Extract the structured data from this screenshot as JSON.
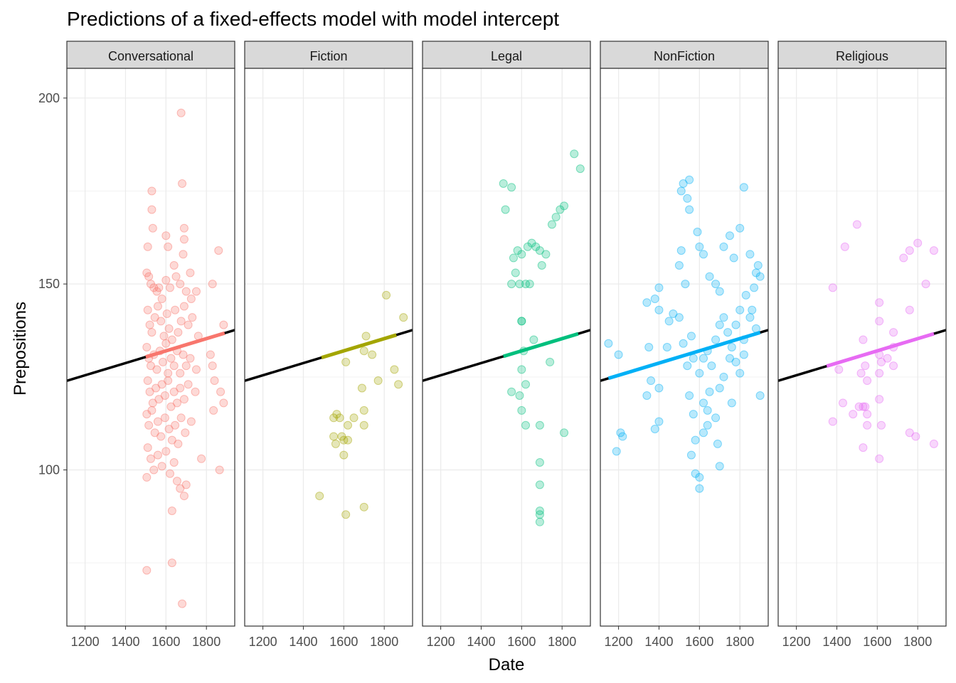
{
  "chart_data": {
    "type": "scatter",
    "title": "Predictions of a fixed-effects model with model intercept",
    "xlabel": "Date",
    "ylabel": "Prepositions",
    "xlim": [
      1110,
      1940
    ],
    "ylim": [
      58,
      208
    ],
    "x_ticks": [
      1200,
      1400,
      1600,
      1800
    ],
    "x_tick_labels": [
      "1200",
      "1400",
      "1600",
      "1800"
    ],
    "y_ticks": [
      100,
      150,
      200
    ],
    "y_tick_labels": [
      "100",
      "150",
      "200"
    ],
    "grid": true,
    "legend": "none",
    "fixed_effect_line": {
      "intercept_at_1100": 123.8,
      "slope_per_year": 0.01643
    },
    "panels": [
      {
        "name": "Conversational",
        "color": "#F8766D",
        "fitted_range": [
          1500,
          1890
        ],
        "points": [
          [
            1505,
            73
          ],
          [
            1630,
            75
          ],
          [
            1680,
            64
          ],
          [
            1675,
            196
          ],
          [
            1680,
            177
          ],
          [
            1530,
            175
          ],
          [
            1530,
            170
          ],
          [
            1535,
            165
          ],
          [
            1600,
            163
          ],
          [
            1690,
            165
          ],
          [
            1720,
            153
          ],
          [
            1510,
            160
          ],
          [
            1610,
            160
          ],
          [
            1690,
            162
          ],
          [
            1685,
            158
          ],
          [
            1640,
            155
          ],
          [
            1505,
            153
          ],
          [
            1515,
            152
          ],
          [
            1525,
            150
          ],
          [
            1540,
            149
          ],
          [
            1555,
            148
          ],
          [
            1565,
            149
          ],
          [
            1580,
            146
          ],
          [
            1600,
            151
          ],
          [
            1620,
            149
          ],
          [
            1650,
            152
          ],
          [
            1670,
            150
          ],
          [
            1700,
            148
          ],
          [
            1725,
            146
          ],
          [
            1750,
            148
          ],
          [
            1830,
            150
          ],
          [
            1860,
            159
          ],
          [
            1510,
            143
          ],
          [
            1520,
            139
          ],
          [
            1530,
            137
          ],
          [
            1545,
            141
          ],
          [
            1560,
            144
          ],
          [
            1575,
            140
          ],
          [
            1590,
            136
          ],
          [
            1605,
            142
          ],
          [
            1615,
            138
          ],
          [
            1630,
            135
          ],
          [
            1645,
            143
          ],
          [
            1660,
            137
          ],
          [
            1675,
            140
          ],
          [
            1690,
            144
          ],
          [
            1710,
            139
          ],
          [
            1730,
            141
          ],
          [
            1760,
            136
          ],
          [
            1505,
            133
          ],
          [
            1515,
            130
          ],
          [
            1525,
            128
          ],
          [
            1540,
            131
          ],
          [
            1555,
            127
          ],
          [
            1570,
            132
          ],
          [
            1585,
            129
          ],
          [
            1600,
            134
          ],
          [
            1610,
            126
          ],
          [
            1625,
            130
          ],
          [
            1640,
            128
          ],
          [
            1655,
            132
          ],
          [
            1670,
            126
          ],
          [
            1685,
            131
          ],
          [
            1700,
            128
          ],
          [
            1720,
            130
          ],
          [
            1750,
            127
          ],
          [
            1510,
            124
          ],
          [
            1520,
            121
          ],
          [
            1535,
            118
          ],
          [
            1550,
            122
          ],
          [
            1565,
            119
          ],
          [
            1580,
            123
          ],
          [
            1595,
            120
          ],
          [
            1610,
            124
          ],
          [
            1625,
            117
          ],
          [
            1640,
            121
          ],
          [
            1655,
            118
          ],
          [
            1670,
            122
          ],
          [
            1690,
            119
          ],
          [
            1710,
            123
          ],
          [
            1745,
            121
          ],
          [
            1840,
            124
          ],
          [
            1870,
            121
          ],
          [
            1885,
            118
          ],
          [
            1505,
            115
          ],
          [
            1515,
            112
          ],
          [
            1530,
            116
          ],
          [
            1545,
            110
          ],
          [
            1560,
            113
          ],
          [
            1575,
            109
          ],
          [
            1595,
            114
          ],
          [
            1615,
            111
          ],
          [
            1630,
            108
          ],
          [
            1645,
            112
          ],
          [
            1660,
            107
          ],
          [
            1675,
            114
          ],
          [
            1695,
            110
          ],
          [
            1725,
            113
          ],
          [
            1835,
            116
          ],
          [
            1510,
            106
          ],
          [
            1525,
            103
          ],
          [
            1540,
            100
          ],
          [
            1560,
            104
          ],
          [
            1580,
            101
          ],
          [
            1600,
            105
          ],
          [
            1620,
            99
          ],
          [
            1640,
            102
          ],
          [
            1655,
            97
          ],
          [
            1670,
            95
          ],
          [
            1690,
            93
          ],
          [
            1700,
            96
          ],
          [
            1505,
            98
          ],
          [
            1775,
            103
          ],
          [
            1865,
            100
          ],
          [
            1630,
            89
          ],
          [
            1885,
            139
          ],
          [
            1820,
            131
          ],
          [
            1830,
            128
          ]
        ]
      },
      {
        "name": "Fiction",
        "color": "#A3A500",
        "fitted_range": [
          1490,
          1860
        ],
        "points": [
          [
            1810,
            147
          ],
          [
            1895,
            141
          ],
          [
            1740,
            131
          ],
          [
            1700,
            132
          ],
          [
            1610,
            129
          ],
          [
            1710,
            136
          ],
          [
            1770,
            124
          ],
          [
            1850,
            127
          ],
          [
            1870,
            123
          ],
          [
            1690,
            122
          ],
          [
            1550,
            114
          ],
          [
            1565,
            115
          ],
          [
            1580,
            114
          ],
          [
            1650,
            114
          ],
          [
            1700,
            116
          ],
          [
            1620,
            112
          ],
          [
            1700,
            112
          ],
          [
            1550,
            109
          ],
          [
            1590,
            109
          ],
          [
            1600,
            108
          ],
          [
            1620,
            108
          ],
          [
            1560,
            107
          ],
          [
            1600,
            104
          ],
          [
            1480,
            93
          ],
          [
            1610,
            88
          ],
          [
            1700,
            90
          ]
        ]
      },
      {
        "name": "Legal",
        "color": "#00BF7D",
        "fitted_range": [
          1510,
          1880
        ],
        "points": [
          [
            1860,
            185
          ],
          [
            1890,
            181
          ],
          [
            1510,
            177
          ],
          [
            1550,
            176
          ],
          [
            1520,
            170
          ],
          [
            1790,
            170
          ],
          [
            1810,
            171
          ],
          [
            1770,
            168
          ],
          [
            1750,
            166
          ],
          [
            1650,
            161
          ],
          [
            1630,
            160
          ],
          [
            1670,
            160
          ],
          [
            1600,
            158
          ],
          [
            1690,
            159
          ],
          [
            1720,
            158
          ],
          [
            1580,
            159
          ],
          [
            1560,
            157
          ],
          [
            1700,
            155
          ],
          [
            1570,
            153
          ],
          [
            1550,
            150
          ],
          [
            1590,
            150
          ],
          [
            1620,
            150
          ],
          [
            1640,
            150
          ],
          [
            1600,
            140
          ],
          [
            1600,
            140
          ],
          [
            1660,
            135
          ],
          [
            1610,
            132
          ],
          [
            1740,
            129
          ],
          [
            1600,
            127
          ],
          [
            1620,
            123
          ],
          [
            1590,
            120
          ],
          [
            1550,
            121
          ],
          [
            1600,
            116
          ],
          [
            1620,
            112
          ],
          [
            1690,
            112
          ],
          [
            1810,
            110
          ],
          [
            1690,
            102
          ],
          [
            1690,
            96
          ],
          [
            1690,
            89
          ],
          [
            1690,
            88
          ],
          [
            1690,
            86
          ]
        ]
      },
      {
        "name": "NonFiction",
        "color": "#00B0F6",
        "fitted_range": [
          1150,
          1900
        ],
        "points": [
          [
            1150,
            134
          ],
          [
            1200,
            131
          ],
          [
            1210,
            110
          ],
          [
            1220,
            109
          ],
          [
            1190,
            105
          ],
          [
            1340,
            120
          ],
          [
            1360,
            124
          ],
          [
            1380,
            111
          ],
          [
            1400,
            113
          ],
          [
            1400,
            122
          ],
          [
            1340,
            145
          ],
          [
            1350,
            133
          ],
          [
            1380,
            146
          ],
          [
            1400,
            143
          ],
          [
            1400,
            149
          ],
          [
            1440,
            133
          ],
          [
            1450,
            140
          ],
          [
            1470,
            142
          ],
          [
            1500,
            155
          ],
          [
            1510,
            175
          ],
          [
            1520,
            177
          ],
          [
            1540,
            173
          ],
          [
            1550,
            178
          ],
          [
            1550,
            170
          ],
          [
            1510,
            159
          ],
          [
            1530,
            150
          ],
          [
            1500,
            141
          ],
          [
            1520,
            134
          ],
          [
            1540,
            128
          ],
          [
            1560,
            136
          ],
          [
            1570,
            130
          ],
          [
            1590,
            164
          ],
          [
            1600,
            160
          ],
          [
            1620,
            158
          ],
          [
            1650,
            152
          ],
          [
            1680,
            150
          ],
          [
            1700,
            148
          ],
          [
            1720,
            160
          ],
          [
            1750,
            163
          ],
          [
            1770,
            157
          ],
          [
            1800,
            165
          ],
          [
            1820,
            176
          ],
          [
            1850,
            158
          ],
          [
            1870,
            149
          ],
          [
            1900,
            152
          ],
          [
            1550,
            120
          ],
          [
            1570,
            115
          ],
          [
            1580,
            108
          ],
          [
            1600,
            98
          ],
          [
            1600,
            95
          ],
          [
            1620,
            118
          ],
          [
            1640,
            112
          ],
          [
            1650,
            121
          ],
          [
            1680,
            114
          ],
          [
            1690,
            107
          ],
          [
            1700,
            101
          ],
          [
            1720,
            125
          ],
          [
            1750,
            130
          ],
          [
            1780,
            139
          ],
          [
            1800,
            143
          ],
          [
            1830,
            147
          ],
          [
            1850,
            141
          ],
          [
            1880,
            138
          ],
          [
            1900,
            120
          ],
          [
            1600,
            126
          ],
          [
            1620,
            130
          ],
          [
            1640,
            132
          ],
          [
            1660,
            128
          ],
          [
            1680,
            135
          ],
          [
            1700,
            139
          ],
          [
            1720,
            141
          ],
          [
            1740,
            137
          ],
          [
            1760,
            133
          ],
          [
            1780,
            129
          ],
          [
            1800,
            126
          ],
          [
            1820,
            131
          ],
          [
            1560,
            104
          ],
          [
            1580,
            99
          ],
          [
            1620,
            110
          ],
          [
            1640,
            116
          ],
          [
            1700,
            122
          ],
          [
            1760,
            118
          ],
          [
            1820,
            135
          ],
          [
            1860,
            143
          ],
          [
            1880,
            153
          ],
          [
            1890,
            155
          ]
        ]
      },
      {
        "name": "Religious",
        "color": "#E76BF3",
        "fitted_range": [
          1350,
          1880
        ],
        "points": [
          [
            1500,
            166
          ],
          [
            1440,
            160
          ],
          [
            1800,
            161
          ],
          [
            1760,
            159
          ],
          [
            1880,
            159
          ],
          [
            1730,
            157
          ],
          [
            1380,
            149
          ],
          [
            1840,
            150
          ],
          [
            1610,
            145
          ],
          [
            1760,
            143
          ],
          [
            1610,
            140
          ],
          [
            1680,
            137
          ],
          [
            1530,
            135
          ],
          [
            1680,
            133
          ],
          [
            1610,
            131
          ],
          [
            1650,
            130
          ],
          [
            1620,
            129
          ],
          [
            1540,
            128
          ],
          [
            1680,
            128
          ],
          [
            1410,
            127
          ],
          [
            1520,
            126
          ],
          [
            1610,
            126
          ],
          [
            1550,
            124
          ],
          [
            1430,
            118
          ],
          [
            1510,
            117
          ],
          [
            1530,
            117
          ],
          [
            1540,
            117
          ],
          [
            1610,
            119
          ],
          [
            1480,
            115
          ],
          [
            1550,
            115
          ],
          [
            1380,
            113
          ],
          [
            1550,
            112
          ],
          [
            1620,
            112
          ],
          [
            1760,
            110
          ],
          [
            1790,
            109
          ],
          [
            1530,
            106
          ],
          [
            1880,
            107
          ],
          [
            1610,
            103
          ]
        ]
      }
    ]
  }
}
